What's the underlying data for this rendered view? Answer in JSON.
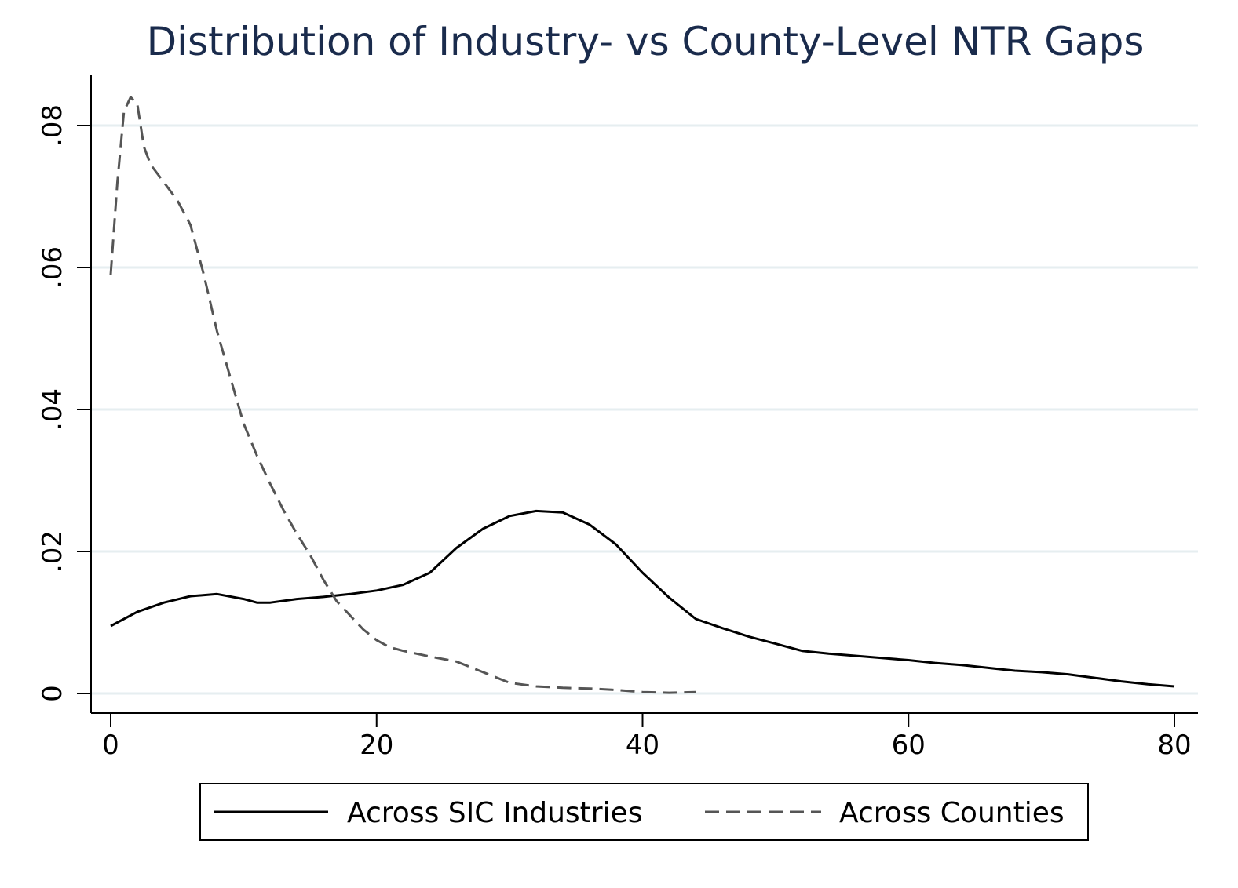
{
  "chart_data": {
    "type": "line",
    "title": "Distribution of Industry- vs County-Level NTR Gaps",
    "xlabel": "",
    "ylabel": "",
    "xlim": [
      0,
      81
    ],
    "ylim": [
      -0.0027,
      0.087
    ],
    "x_ticks": [
      0,
      20,
      40,
      60,
      80
    ],
    "x_tick_labels": [
      "0",
      "20",
      "40",
      "60",
      "80"
    ],
    "y_ticks": [
      0,
      0.02,
      0.04,
      0.06,
      0.08
    ],
    "y_tick_labels": [
      "0",
      ".02",
      ".04",
      ".06",
      ".08"
    ],
    "grid": "horizontal",
    "legend_position": "bottom",
    "series": [
      {
        "name": "Across SIC Industries",
        "style": "solid",
        "color": "#000000",
        "x": [
          0,
          2,
          4,
          6,
          8,
          10,
          11,
          12,
          14,
          16,
          18,
          20,
          22,
          24,
          26,
          28,
          30,
          32,
          34,
          36,
          38,
          40,
          42,
          44,
          46,
          48,
          50,
          52,
          54,
          56,
          58,
          60,
          62,
          64,
          66,
          68,
          70,
          72,
          74,
          76,
          78,
          80
        ],
        "y": [
          0.0095,
          0.0115,
          0.0128,
          0.0137,
          0.014,
          0.0133,
          0.0128,
          0.0128,
          0.0133,
          0.0136,
          0.014,
          0.0145,
          0.0153,
          0.017,
          0.0205,
          0.0232,
          0.025,
          0.0257,
          0.0255,
          0.0238,
          0.021,
          0.017,
          0.0135,
          0.0105,
          0.0092,
          0.008,
          0.007,
          0.006,
          0.0056,
          0.0053,
          0.005,
          0.0047,
          0.0043,
          0.004,
          0.0036,
          0.0032,
          0.003,
          0.0027,
          0.0022,
          0.0017,
          0.0013,
          0.001
        ]
      },
      {
        "name": "Across Counties",
        "style": "dashed",
        "color": "#555555",
        "x": [
          0,
          0.5,
          1,
          1.5,
          2,
          2.5,
          3,
          4,
          5,
          6,
          7,
          8,
          9,
          10,
          11,
          12,
          13,
          14,
          15,
          16,
          17,
          18,
          19,
          20,
          21,
          22,
          24,
          26,
          28,
          30,
          32,
          34,
          36,
          38,
          40,
          42,
          44
        ],
        "y": [
          0.059,
          0.072,
          0.082,
          0.084,
          0.083,
          0.077,
          0.0745,
          0.072,
          0.0695,
          0.066,
          0.059,
          0.051,
          0.0445,
          0.038,
          0.0335,
          0.0295,
          0.0258,
          0.0225,
          0.0195,
          0.016,
          0.013,
          0.011,
          0.009,
          0.0075,
          0.0065,
          0.006,
          0.0052,
          0.0045,
          0.003,
          0.0015,
          0.001,
          0.0008,
          0.0007,
          0.0005,
          0.0002,
          0.0001,
          0.0002
        ]
      }
    ]
  }
}
